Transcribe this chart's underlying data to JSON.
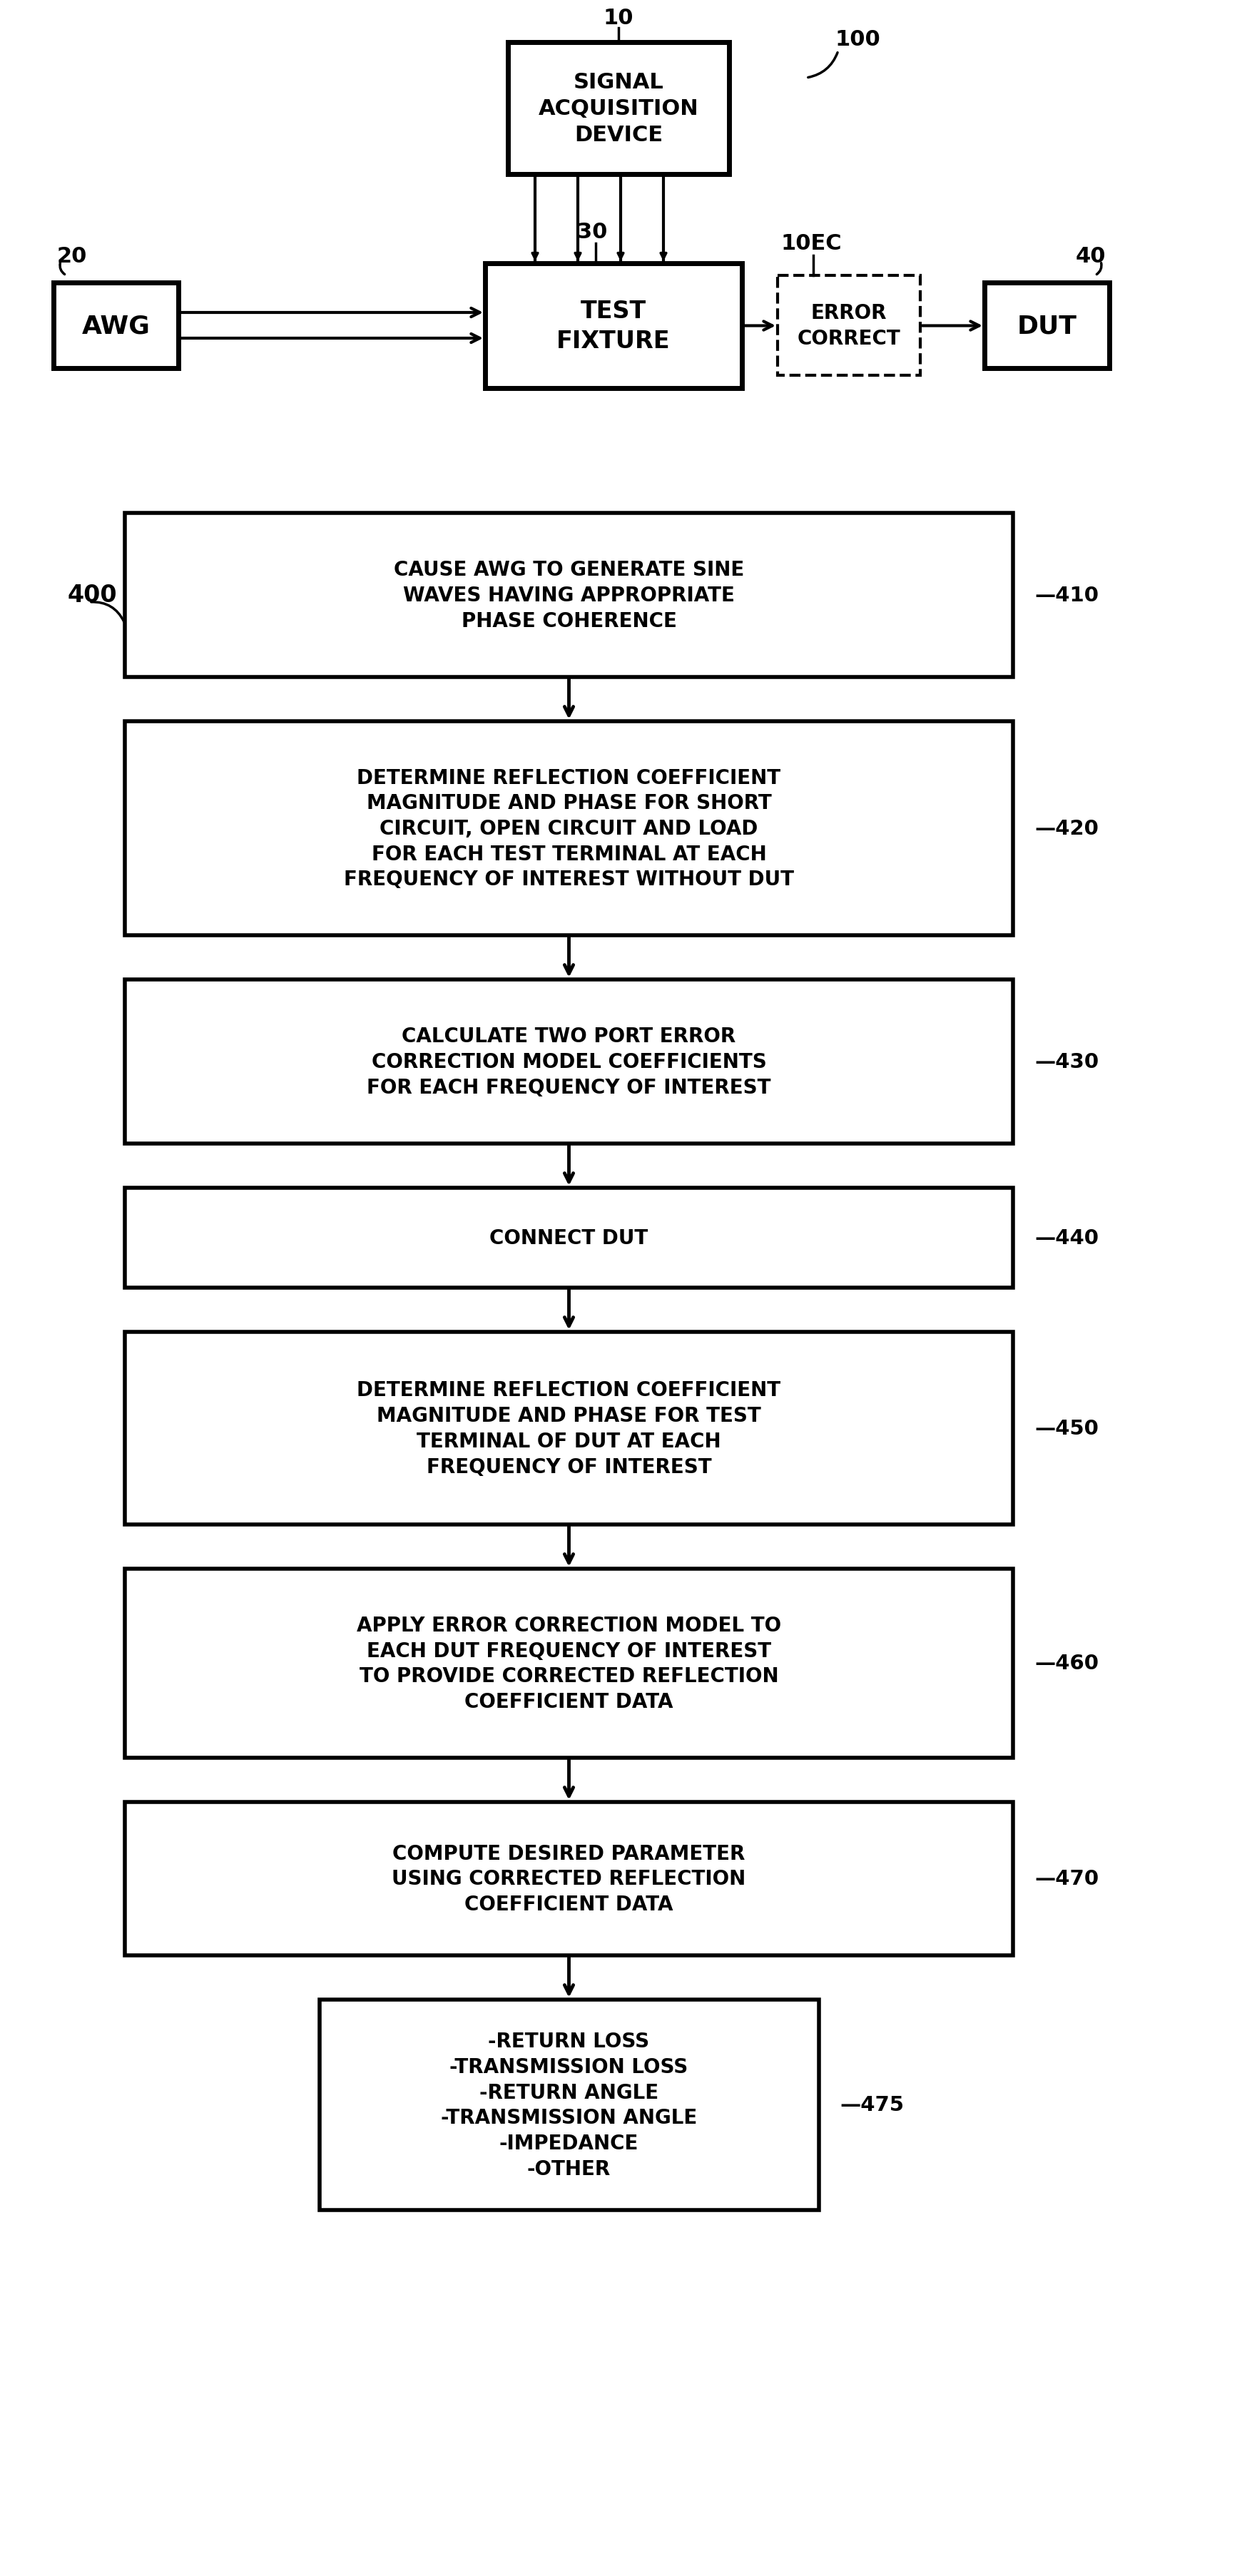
{
  "bg_color": "#ffffff",
  "line_color": "#000000",
  "font_family": "DejaVu Sans",
  "sad_text": "SIGNAL\nACQUISITION\nDEVICE",
  "sad_label": "10",
  "awg_text": "AWG",
  "awg_label": "20",
  "tf_text": "TEST\nFIXTURE",
  "tf_label": "30",
  "ec_text": "ERROR\nCORRECT",
  "ec_label": "10EC",
  "dut_text": "DUT",
  "dut_label": "40",
  "ref100_label": "100",
  "ref400_label": "400",
  "flow_boxes": [
    {
      "text": "CAUSE AWG TO GENERATE SINE\nWAVES HAVING APPROPRIATE\nPHASE COHERENCE",
      "label": "410",
      "narrow": false
    },
    {
      "text": "DETERMINE REFLECTION COEFFICIENT\nMAGNITUDE AND PHASE FOR SHORT\nCIRCUIT, OPEN CIRCUIT AND LOAD\nFOR EACH TEST TERMINAL AT EACH\nFREQUENCY OF INTEREST WITHOUT DUT",
      "label": "420",
      "narrow": false
    },
    {
      "text": "CALCULATE TWO PORT ERROR\nCORRECTION MODEL COEFFICIENTS\nFOR EACH FREQUENCY OF INTEREST",
      "label": "430",
      "narrow": false
    },
    {
      "text": "CONNECT DUT",
      "label": "440",
      "narrow": false
    },
    {
      "text": "DETERMINE REFLECTION COEFFICIENT\nMAGNITUDE AND PHASE FOR TEST\nTERMINAL OF DUT AT EACH\nFREQUENCY OF INTEREST",
      "label": "450",
      "narrow": false
    },
    {
      "text": "APPLY ERROR CORRECTION MODEL TO\nEACH DUT FREQUENCY OF INTEREST\nTO PROVIDE CORRECTED REFLECTION\nCOEFFICIENT DATA",
      "label": "460",
      "narrow": false
    },
    {
      "text": "COMPUTE DESIRED PARAMETER\nUSING CORRECTED REFLECTION\nCOEFFICIENT DATA",
      "label": "470",
      "narrow": false
    },
    {
      "text": "-RETURN LOSS\n-TRANSMISSION LOSS\n-RETURN ANGLE\n-TRANSMISSION ANGLE\n-IMPEDANCE\n-OTHER",
      "label": "475",
      "narrow": true
    }
  ]
}
